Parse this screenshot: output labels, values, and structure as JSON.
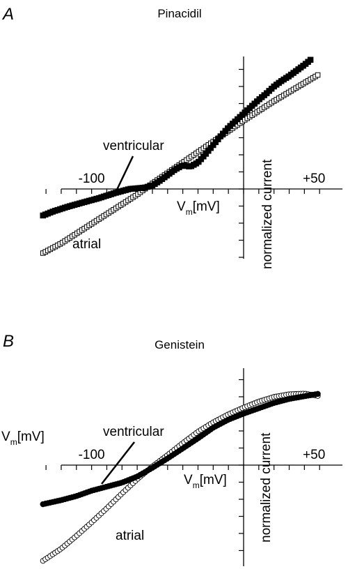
{
  "chart_data": [
    {
      "type": "scatter",
      "panel": "A",
      "title": "Pinacidil",
      "xlabel": "V",
      "xlabel_sub": "m",
      "xlabel_unit": "[mV]",
      "ylabel": "normalized current",
      "xlim": [
        -133,
        52
      ],
      "ylim": [
        -1,
        1.9
      ],
      "x_tick_labels": [
        {
          "value": -100,
          "text": "-100"
        },
        {
          "value": 50,
          "text": "+50"
        }
      ],
      "grid": false,
      "series": [
        {
          "name": "ventricular",
          "marker": "filled-square",
          "x": [
            -132,
            -125,
            -115,
            -105,
            -95,
            -85,
            -75,
            -70,
            -65,
            -60,
            -55,
            -50,
            -45,
            -40,
            -35,
            -30,
            -25,
            -20,
            -15,
            -10,
            -5,
            0,
            5,
            10,
            15,
            20,
            25,
            30,
            35,
            40,
            45
          ],
          "y": [
            -0.38,
            -0.32,
            -0.25,
            -0.19,
            -0.13,
            -0.06,
            0.0,
            0.01,
            0.02,
            0.05,
            0.12,
            0.2,
            0.28,
            0.34,
            0.32,
            0.38,
            0.5,
            0.63,
            0.76,
            0.88,
            0.98,
            1.08,
            1.18,
            1.28,
            1.37,
            1.47,
            1.55,
            1.62,
            1.7,
            1.78,
            1.87
          ]
        },
        {
          "name": "atrial",
          "marker": "open-square",
          "x": [
            -132,
            -120,
            -110,
            -100,
            -90,
            -80,
            -70,
            -60,
            -50,
            -40,
            -30,
            -20,
            -10,
            0,
            10,
            20,
            30,
            40,
            50
          ],
          "y": [
            -0.92,
            -0.78,
            -0.64,
            -0.5,
            -0.36,
            -0.22,
            -0.08,
            0.08,
            0.23,
            0.38,
            0.53,
            0.68,
            0.83,
            0.98,
            1.12,
            1.26,
            1.39,
            1.52,
            1.65
          ]
        }
      ]
    },
    {
      "type": "scatter",
      "panel": "B",
      "title": "Genistein",
      "xlabel": "V",
      "xlabel_sub": "m",
      "xlabel_unit": "[mV]",
      "ylabel": "normalized current",
      "xlim": [
        -133,
        52
      ],
      "ylim": [
        -1.5,
        1.45
      ],
      "x_tick_labels": [
        {
          "value": -100,
          "text": "-100"
        },
        {
          "value": 50,
          "text": "+50"
        }
      ],
      "grid": false,
      "series": [
        {
          "name": "ventricular",
          "marker": "filled-circle",
          "x": [
            -132,
            -120,
            -110,
            -100,
            -90,
            -80,
            -70,
            -60,
            -50,
            -40,
            -30,
            -20,
            -10,
            0,
            10,
            20,
            30,
            40,
            50
          ],
          "y": [
            -0.58,
            -0.52,
            -0.46,
            -0.38,
            -0.32,
            -0.26,
            -0.17,
            -0.04,
            0.1,
            0.25,
            0.4,
            0.56,
            0.68,
            0.77,
            0.85,
            0.93,
            0.99,
            1.03,
            1.07
          ]
        },
        {
          "name": "atrial",
          "marker": "open-circle",
          "x": [
            -132,
            -120,
            -110,
            -100,
            -90,
            -80,
            -70,
            -60,
            -50,
            -40,
            -30,
            -20,
            -10,
            0,
            10,
            20,
            30,
            40,
            50
          ],
          "y": [
            -1.42,
            -1.24,
            -1.05,
            -0.85,
            -0.64,
            -0.42,
            -0.21,
            -0.02,
            0.15,
            0.33,
            0.5,
            0.64,
            0.76,
            0.86,
            0.95,
            1.02,
            1.06,
            1.07,
            1.03
          ]
        }
      ],
      "extra_axis_label": {
        "text": "V",
        "sub": "m",
        "unit": "[mV]"
      }
    }
  ]
}
